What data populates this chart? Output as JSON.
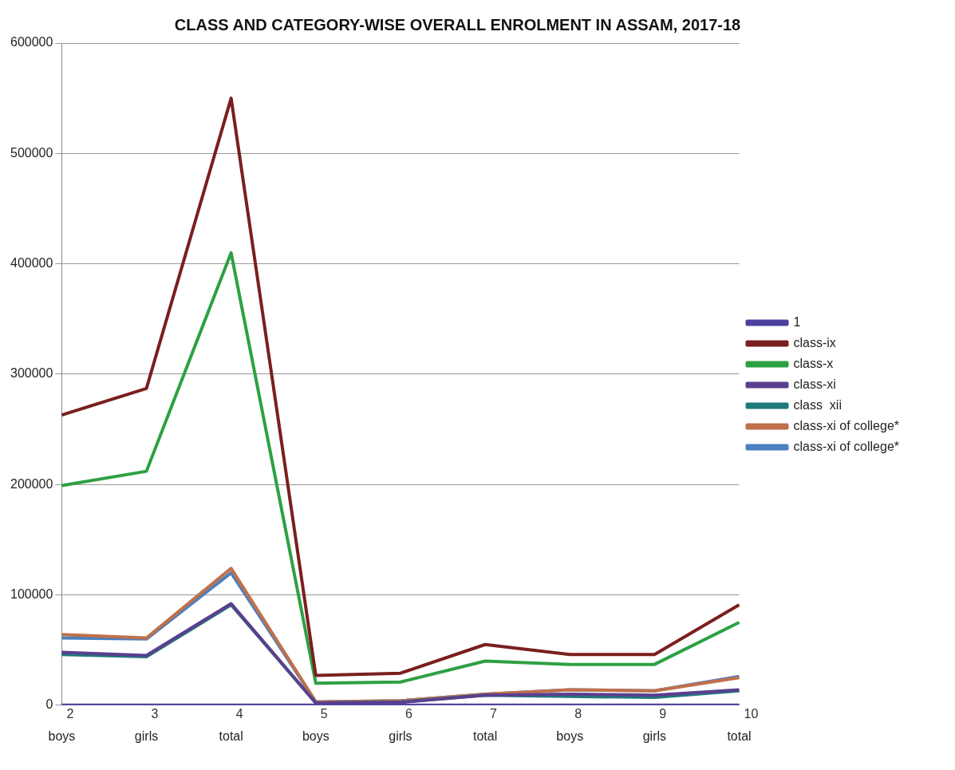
{
  "chart_data": {
    "type": "line",
    "title": "CLASS AND CATEGORY-WISE OVERALL ENROLMENT IN ASSAM, 2017-18",
    "categories": [
      "boys",
      "girls",
      "total",
      "boys",
      "girls",
      "total",
      "boys",
      "girls",
      "total"
    ],
    "series": [
      {
        "name": "1",
        "color": "#4b3fa0",
        "values": [
          2,
          3,
          4,
          5,
          6,
          7,
          8,
          9,
          10
        ],
        "value_labels": [
          "2",
          "3",
          "4",
          "5",
          "6",
          "7",
          "8",
          "9",
          "10"
        ]
      },
      {
        "name": "class-ix",
        "color": "#7a1f1f",
        "values": [
          263000,
          287000,
          550000,
          27000,
          29000,
          55000,
          46000,
          46000,
          91000
        ]
      },
      {
        "name": "class-x",
        "color": "#2ea043",
        "values": [
          199000,
          212000,
          410000,
          20000,
          21000,
          40000,
          37000,
          37000,
          75000
        ]
      },
      {
        "name": "class-xi",
        "color": "#5b3f8f",
        "values": [
          48000,
          45000,
          92000,
          2000,
          2500,
          9000,
          10000,
          9000,
          14000
        ]
      },
      {
        "name": "class  xii",
        "color": "#1f7a7a",
        "values": [
          46000,
          44000,
          91000,
          2000,
          3000,
          9000,
          8000,
          7000,
          13000
        ]
      },
      {
        "name": "class-xi of college*",
        "color": "#c0704a",
        "values": [
          64000,
          61000,
          124000,
          3000,
          4000,
          10000,
          14000,
          13000,
          25000
        ]
      },
      {
        "name": "class-xi of college*",
        "color": "#4a7fc0",
        "values": [
          61000,
          60000,
          120000,
          3000,
          4000,
          10000,
          14000,
          13000,
          26000
        ]
      }
    ],
    "ylim": [
      0,
      600000
    ],
    "yticks": [
      0,
      100000,
      200000,
      300000,
      400000,
      500000,
      600000
    ],
    "grid": "y",
    "legend": "right",
    "marker": "none",
    "line_style": "solid"
  }
}
